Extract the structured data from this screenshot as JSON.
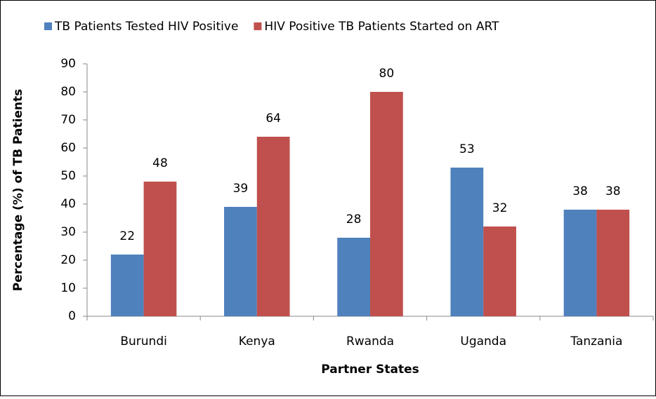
{
  "chart_data": {
    "type": "bar",
    "xlabel": "Partner States",
    "ylabel": "Percentage (%) of TB Patients",
    "categories": [
      "Burundi",
      "Kenya",
      "Rwanda",
      "Uganda",
      "Tanzania"
    ],
    "series": [
      {
        "name": "TB Patients Tested HIV Positive",
        "color": "#4f81bd",
        "values": [
          22,
          39,
          28,
          53,
          38
        ]
      },
      {
        "name": "HIV Positive TB Patients Started on ART",
        "color": "#c0504d",
        "values": [
          48,
          64,
          80,
          32,
          38
        ]
      }
    ],
    "ylim": [
      0,
      90
    ],
    "yticks": [
      0,
      10,
      20,
      30,
      40,
      50,
      60,
      70,
      80,
      90
    ],
    "grid": false,
    "legend": "top"
  }
}
